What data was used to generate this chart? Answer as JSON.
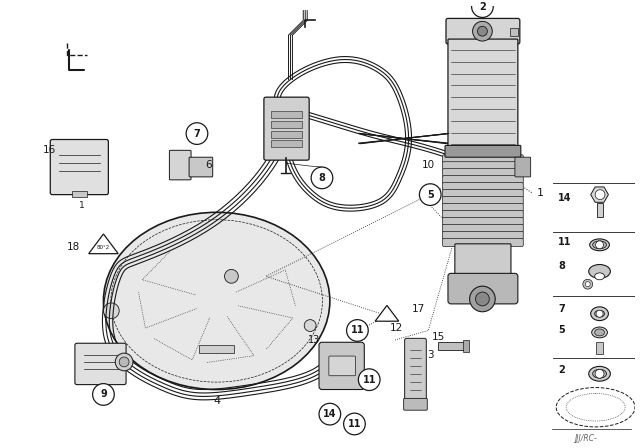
{
  "bg_color": "#ffffff",
  "line_color": "#1a1a1a",
  "fig_width": 6.4,
  "fig_height": 4.48,
  "dpi": 100,
  "watermark": "JJJ/RC-"
}
